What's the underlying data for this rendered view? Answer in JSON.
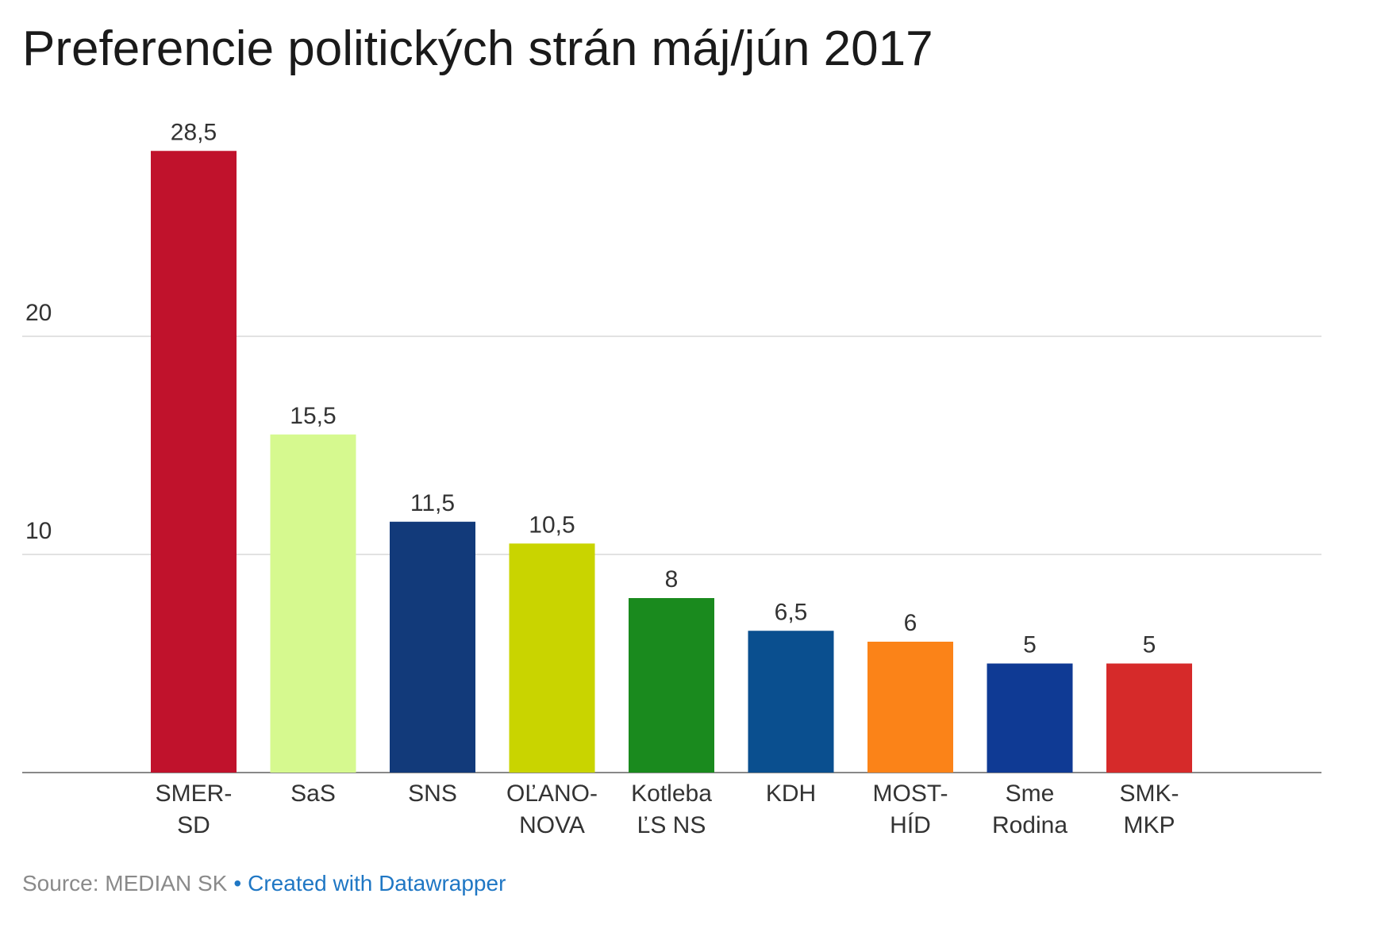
{
  "footer": {
    "source": "Source: MEDIAN SK",
    "separator": "•",
    "credit": "Created with Datawrapper"
  },
  "chart_data": {
    "type": "bar",
    "title": "Preferencie politických strán máj/jún 2017",
    "categories": [
      [
        "SMER-",
        "SD"
      ],
      [
        "SaS"
      ],
      [
        "SNS"
      ],
      [
        "OĽANO-",
        "NOVA"
      ],
      [
        "Kotleba",
        "ĽS NS"
      ],
      [
        "KDH"
      ],
      [
        "MOST-",
        "HÍD"
      ],
      [
        "Sme",
        "Rodina"
      ],
      [
        "SMK-",
        "MKP"
      ]
    ],
    "values": [
      28.5,
      15.5,
      11.5,
      10.5,
      8,
      6.5,
      6,
      5,
      5
    ],
    "value_labels": [
      "28,5",
      "15,5",
      "11,5",
      "10,5",
      "8",
      "6,5",
      "6",
      "5",
      "5"
    ],
    "colors": [
      "#c0122c",
      "#d6f98f",
      "#123a7a",
      "#c9d400",
      "#1a8a1e",
      "#0a4f8f",
      "#fb8318",
      "#0f3a94",
      "#d62a2a"
    ],
    "yticks": [
      10,
      20
    ],
    "ylim": [
      0,
      30
    ],
    "grid": true,
    "legend": "none"
  }
}
